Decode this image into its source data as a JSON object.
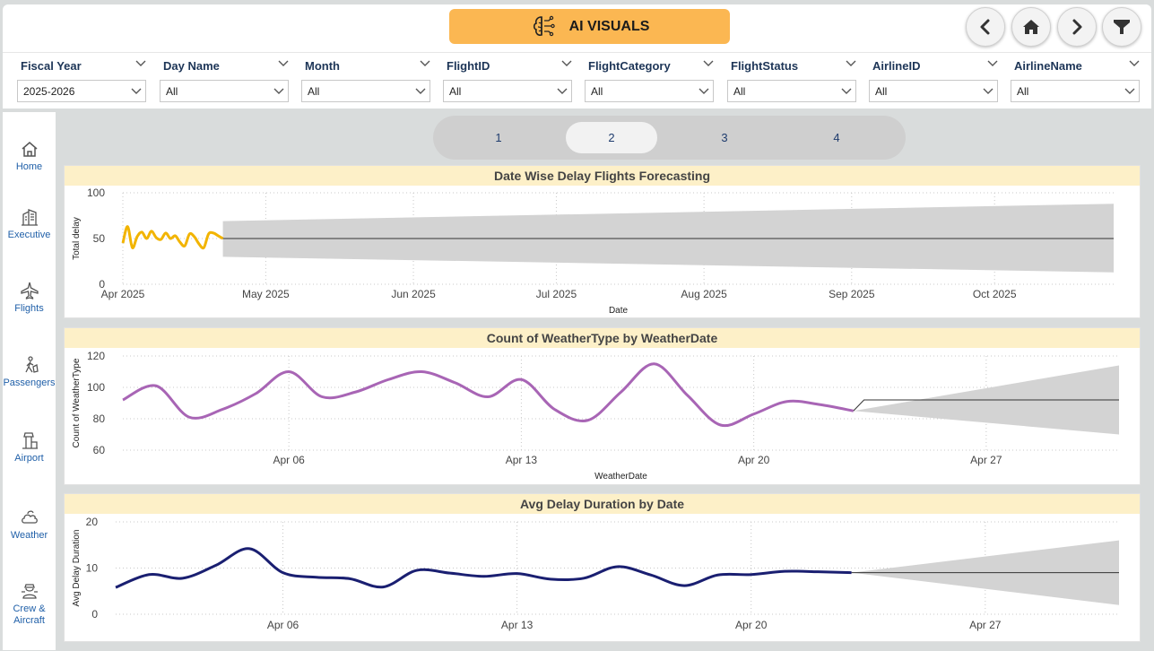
{
  "header": {
    "title": "AI VISUALS",
    "accent": "#fbb752"
  },
  "nav_buttons": [
    "back-icon",
    "home-icon",
    "forward-icon",
    "filter-icon"
  ],
  "filters": [
    {
      "label": "Fiscal Year",
      "value": "2025-2026"
    },
    {
      "label": "Day Name",
      "value": "All"
    },
    {
      "label": "Month",
      "value": "All"
    },
    {
      "label": "FlightID",
      "value": "All"
    },
    {
      "label": "FlightCategory",
      "value": "All"
    },
    {
      "label": "FlightStatus",
      "value": "All"
    },
    {
      "label": "AirlineID",
      "value": "All"
    },
    {
      "label": "AirlineName",
      "value": "All"
    }
  ],
  "sidebar": {
    "items": [
      {
        "label": "Home",
        "icon": "home-icon"
      },
      {
        "label": "Executive",
        "icon": "building-icon"
      },
      {
        "label": "Flights",
        "icon": "airplane-icon"
      },
      {
        "label": "Passengers",
        "icon": "passenger-icon"
      },
      {
        "label": "Airport",
        "icon": "control-tower-icon"
      },
      {
        "label": "Weather",
        "icon": "cloud-icon"
      },
      {
        "label": "Crew &",
        "label2": "Aircraft",
        "icon": "crew-icon"
      }
    ]
  },
  "pager": {
    "pages": [
      "1",
      "2",
      "3",
      "4"
    ],
    "active": "2"
  },
  "chart_data": [
    {
      "type": "line",
      "title": "Date Wise Delay Flights Forecasting",
      "xlabel": "Date",
      "ylabel": "Total delay",
      "x_ticks": [
        "Apr 2025",
        "May 2025",
        "Jun 2025",
        "Jul 2025",
        "Aug 2025",
        "Sep 2025",
        "Oct 2025"
      ],
      "y_ticks": [
        "0",
        "50",
        "100"
      ],
      "ylim": [
        0,
        100
      ],
      "x_start": "2025-04-01",
      "x_end": "2025-10-26",
      "grid": true,
      "series_color": "#f2b400",
      "series": [
        {
          "x": [
            "2025-04-01",
            "2025-04-02",
            "2025-04-03",
            "2025-04-04",
            "2025-04-05",
            "2025-04-06",
            "2025-04-07",
            "2025-04-08",
            "2025-04-09",
            "2025-04-10",
            "2025-04-11",
            "2025-04-12",
            "2025-04-13",
            "2025-04-14",
            "2025-04-15",
            "2025-04-16",
            "2025-04-17",
            "2025-04-18",
            "2025-04-19",
            "2025-04-20",
            "2025-04-21",
            "2025-04-22"
          ],
          "values": [
            45,
            63,
            40,
            52,
            57,
            50,
            58,
            51,
            49,
            56,
            50,
            53,
            46,
            42,
            55,
            52,
            44,
            40,
            55,
            56,
            53,
            50
          ]
        }
      ],
      "forecast": {
        "x_start": "2025-04-22",
        "x_end": "2025-10-26",
        "value": 50,
        "lower_start": 30,
        "lower_end": 13,
        "upper_start": 69,
        "upper_end": 88
      }
    },
    {
      "type": "line",
      "title": "Count of WeatherType by WeatherDate",
      "xlabel": "WeatherDate",
      "ylabel": "Count of WeatherType",
      "x_ticks": [
        "Apr 06",
        "Apr 13",
        "Apr 20",
        "Apr 27"
      ],
      "y_ticks": [
        "60",
        "80",
        "100",
        "120"
      ],
      "ylim": [
        60,
        120
      ],
      "x_start": "2025-04-01",
      "x_end": "2025-05-01",
      "grid": true,
      "series_color": "#a865b5",
      "series": [
        {
          "x": [
            "2025-04-01",
            "2025-04-02",
            "2025-04-03",
            "2025-04-04",
            "2025-04-05",
            "2025-04-06",
            "2025-04-07",
            "2025-04-08",
            "2025-04-09",
            "2025-04-10",
            "2025-04-11",
            "2025-04-12",
            "2025-04-13",
            "2025-04-14",
            "2025-04-15",
            "2025-04-16",
            "2025-04-17",
            "2025-04-18",
            "2025-04-19",
            "2025-04-20",
            "2025-04-21",
            "2025-04-22",
            "2025-04-23"
          ],
          "values": [
            92,
            101,
            81,
            86,
            96,
            110,
            94,
            97,
            105,
            110,
            103,
            94,
            105,
            86,
            79,
            97,
            115,
            95,
            76,
            83,
            91,
            89,
            85
          ]
        }
      ],
      "forecast": {
        "x_start": "2025-04-23",
        "x_end": "2025-05-01",
        "value": 92,
        "lower_start": 85,
        "lower_end": 70,
        "upper_start": 85,
        "upper_end": 114
      }
    },
    {
      "type": "line",
      "title": "Avg Delay Duration by Date",
      "xlabel": "",
      "ylabel": "Avg Delay Duration",
      "x_ticks": [
        "Apr 06",
        "Apr 13",
        "Apr 20",
        "Apr 27"
      ],
      "y_ticks": [
        "0",
        "10",
        "20"
      ],
      "ylim": [
        0,
        20
      ],
      "x_start": "2025-04-01",
      "x_end": "2025-05-01",
      "grid": true,
      "series_color": "#1a1f71",
      "series": [
        {
          "x": [
            "2025-04-01",
            "2025-04-02",
            "2025-04-03",
            "2025-04-04",
            "2025-04-05",
            "2025-04-06",
            "2025-04-07",
            "2025-04-08",
            "2025-04-09",
            "2025-04-10",
            "2025-04-11",
            "2025-04-12",
            "2025-04-13",
            "2025-04-14",
            "2025-04-15",
            "2025-04-16",
            "2025-04-17",
            "2025-04-18",
            "2025-04-19",
            "2025-04-20",
            "2025-04-21",
            "2025-04-22",
            "2025-04-23"
          ],
          "values": [
            5.8,
            8.6,
            7.8,
            10.6,
            14.2,
            9,
            8,
            7.7,
            5.9,
            9.5,
            8.9,
            8.2,
            8.8,
            7.6,
            7.8,
            10.3,
            8.5,
            6.2,
            8.5,
            8.6,
            9.3,
            9.2,
            9
          ]
        }
      ],
      "forecast": {
        "x_start": "2025-04-23",
        "x_end": "2025-05-01",
        "value": 9,
        "lower_start": 9,
        "lower_end": 2,
        "upper_start": 9,
        "upper_end": 16
      }
    }
  ]
}
